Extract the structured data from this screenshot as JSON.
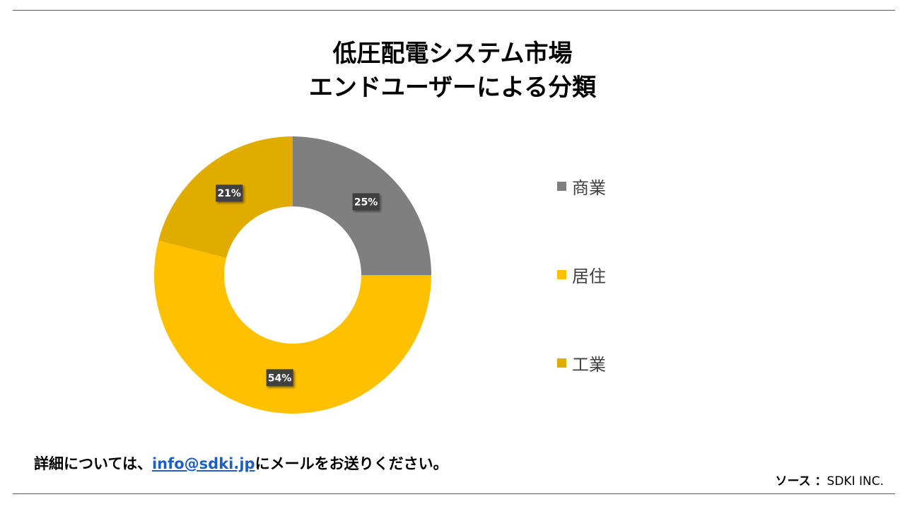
{
  "title": {
    "line1": "低圧配電システム市場",
    "line2": "エンドユーザーによる分類"
  },
  "chart_data": {
    "type": "pie",
    "donut": true,
    "categories": [
      "商業",
      "居住",
      "工業"
    ],
    "values": [
      25,
      54,
      21
    ],
    "labels": [
      "25%",
      "54%",
      "21%"
    ],
    "colors": [
      "#7f7f7f",
      "#ffc000",
      "#e0ac00"
    ],
    "legend_placement": "right"
  },
  "legend": {
    "items": [
      {
        "label": "商業",
        "color": "#7f7f7f"
      },
      {
        "label": "居住",
        "color": "#ffc000"
      },
      {
        "label": "工業",
        "color": "#e0ac00"
      }
    ]
  },
  "footer": {
    "prefix": "詳細については、",
    "email": "info@sdki.jp",
    "suffix": "にメールをお送りください。"
  },
  "source": {
    "label": "ソース ：",
    "value": "SDKI INC."
  }
}
